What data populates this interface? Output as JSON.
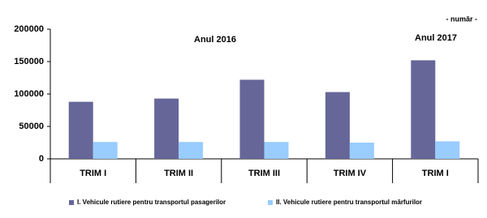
{
  "chart_data": {
    "type": "bar",
    "annotations": [
      "- număr -",
      "Anul 2016",
      "Anul 2017"
    ],
    "categories": [
      "TRIM I",
      "TRIM II",
      "TRIM III",
      "TRIM IV",
      "TRIM I"
    ],
    "series": [
      {
        "name": "I. Vehicule rutiere pentru transportul pasagerilor",
        "color": "#666699",
        "values": [
          88000,
          93000,
          122000,
          103000,
          152000
        ]
      },
      {
        "name": "II. Vehicule rutiere pentru transportul mărfurilor",
        "color": "#99ccff",
        "values": [
          26000,
          26000,
          26000,
          25000,
          27000
        ]
      }
    ],
    "ylim": [
      0,
      200000
    ],
    "yticks": [
      0,
      50000,
      100000,
      150000,
      200000
    ],
    "grid": false,
    "legend": "bottom"
  }
}
